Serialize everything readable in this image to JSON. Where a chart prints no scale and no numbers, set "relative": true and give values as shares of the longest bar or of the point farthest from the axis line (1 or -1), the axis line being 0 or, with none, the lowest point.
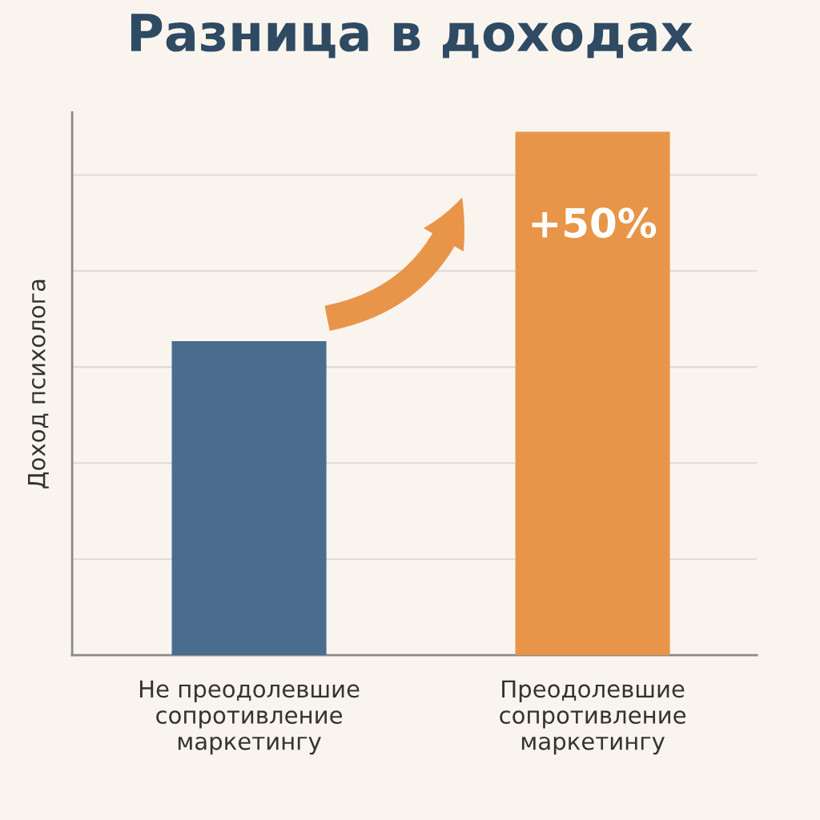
{
  "chart_data": {
    "type": "bar",
    "title": "Разница в доходах",
    "ylabel": "Доход психолога",
    "categories": [
      "Не преодолевшие\nсопротивление\nмаркетингу",
      "Преодолевшие\nсопротивление\nмаркетингу"
    ],
    "values": [
      0.6,
      1
    ],
    "colors": [
      "#4a6d8f",
      "#e8954a"
    ],
    "relative": true,
    "grid": "y",
    "annotations": [
      "+50%"
    ]
  }
}
